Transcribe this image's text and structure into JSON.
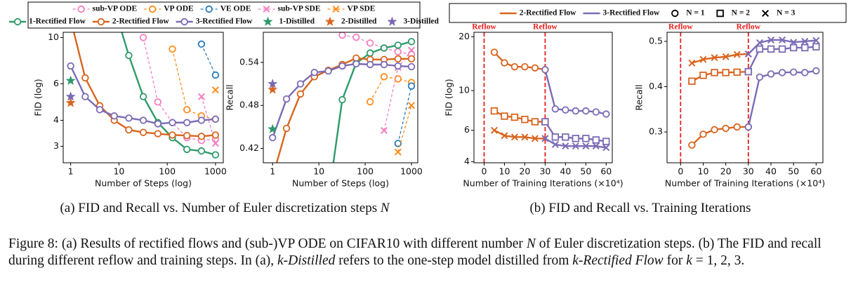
{
  "chart_data": [
    {
      "type": "line",
      "xlabel": "Number of Steps (log)",
      "ylabel": "FID (log)",
      "xlog": true,
      "ylog": true,
      "xlim": [
        0.7,
        1450
      ],
      "ylim": [
        2.5,
        10.6
      ],
      "xticks": [
        1,
        10,
        100,
        1000
      ],
      "yticks": [
        3,
        4,
        6,
        10
      ],
      "x": [
        1,
        2,
        4,
        8,
        16,
        32,
        64,
        128,
        256,
        512,
        1000
      ],
      "series": [
        {
          "name": "sub-VP ODE",
          "color": "#f47fc0",
          "marker": "circle",
          "linestyle": "dashed",
          "values": [
            null,
            null,
            null,
            null,
            null,
            10,
            4.9,
            3.9,
            3.3,
            3.2,
            3.25
          ]
        },
        {
          "name": "VP ODE",
          "color": "#ff8c1a",
          "marker": "circle",
          "linestyle": "dashed",
          "values": [
            null,
            null,
            null,
            null,
            null,
            null,
            null,
            8.8,
            4.5,
            4.2,
            4.05
          ]
        },
        {
          "name": "VE ODE",
          "color": "#2a7ab9",
          "marker": "circle",
          "linestyle": "dashed",
          "values": [
            null,
            null,
            null,
            null,
            null,
            null,
            null,
            null,
            null,
            9.3,
            6.6
          ]
        },
        {
          "name": "sub-VP SDE",
          "color": "#f47fc0",
          "marker": "x",
          "linestyle": "dashed",
          "values": [
            null,
            null,
            null,
            null,
            null,
            null,
            null,
            null,
            null,
            5.2,
            3.1
          ]
        },
        {
          "name": "VP SDE",
          "color": "#ff8c1a",
          "marker": "x",
          "linestyle": "dashed",
          "values": [
            null,
            null,
            null,
            null,
            null,
            null,
            null,
            null,
            null,
            null,
            5.6
          ]
        },
        {
          "name": "1-Rectified Flow",
          "color": "#2e9a6a",
          "marker": "circle",
          "linestyle": "solid",
          "values": [
            null,
            null,
            null,
            14,
            8.2,
            5.2,
            3.9,
            3.3,
            2.9,
            2.85,
            2.73
          ]
        },
        {
          "name": "2-Rectified Flow",
          "color": "#d9651f",
          "marker": "circle",
          "linestyle": "solid",
          "values": [
            12.2,
            6.4,
            4.7,
            4.0,
            3.6,
            3.5,
            3.45,
            3.4,
            3.38,
            3.35,
            3.4
          ]
        },
        {
          "name": "3-Rectified Flow",
          "color": "#7b6bb5",
          "marker": "circle",
          "linestyle": "solid",
          "values": [
            7.3,
            5.2,
            4.5,
            4.2,
            4.1,
            4.0,
            3.85,
            3.9,
            3.9,
            4.0,
            4.05
          ]
        },
        {
          "name": "1-Distilled",
          "color": "#2e9a6a",
          "marker": "star",
          "linestyle": "none",
          "values": [
            6.2,
            null,
            null,
            null,
            null,
            null,
            null,
            null,
            null,
            null,
            null
          ]
        },
        {
          "name": "2-Distilled",
          "color": "#d9651f",
          "marker": "star",
          "linestyle": "none",
          "values": [
            4.85,
            null,
            null,
            null,
            null,
            null,
            null,
            null,
            null,
            null,
            null
          ]
        },
        {
          "name": "3-Distilled",
          "color": "#7b6bb5",
          "marker": "star",
          "linestyle": "none",
          "values": [
            5.2,
            null,
            null,
            null,
            null,
            null,
            null,
            null,
            null,
            null,
            null
          ]
        }
      ]
    },
    {
      "type": "line",
      "xlabel": "Number of Steps (log)",
      "ylabel": "Recall",
      "xlog": true,
      "ylog": false,
      "xlim": [
        0.63,
        1370
      ],
      "ylim": [
        0.4,
        0.582
      ],
      "xticks": [
        1,
        10,
        100,
        1000
      ],
      "yticks": [
        0.42,
        0.48,
        0.54
      ],
      "x": [
        1,
        2,
        4,
        8,
        16,
        32,
        64,
        128,
        256,
        512,
        1000
      ],
      "series": [
        {
          "color": "#f47fc0",
          "marker": "circle",
          "linestyle": "dashed",
          "values": [
            null,
            null,
            null,
            null,
            null,
            0.578,
            0.575,
            0.567,
            0.56,
            0.555,
            0.551
          ]
        },
        {
          "color": "#ff8c1a",
          "marker": "circle",
          "linestyle": "dashed",
          "values": [
            null,
            null,
            null,
            null,
            null,
            null,
            null,
            0.485,
            0.52,
            0.517,
            0.512
          ]
        },
        {
          "color": "#2a7ab9",
          "marker": "circle",
          "linestyle": "dashed",
          "values": [
            null,
            null,
            null,
            null,
            null,
            null,
            null,
            null,
            null,
            0.427,
            0.507
          ]
        },
        {
          "color": "#f47fc0",
          "marker": "x",
          "linestyle": "dashed",
          "values": [
            null,
            null,
            null,
            null,
            null,
            null,
            null,
            null,
            0.445,
            0.533,
            0.557
          ]
        },
        {
          "color": "#ff8c1a",
          "marker": "x",
          "linestyle": "dashed",
          "values": [
            null,
            null,
            null,
            null,
            null,
            null,
            null,
            null,
            null,
            0.415,
            0.48
          ]
        },
        {
          "color": "#2e9a6a",
          "marker": "circle",
          "linestyle": "solid",
          "values": [
            null,
            null,
            null,
            null,
            0.35,
            0.488,
            0.539,
            0.553,
            0.56,
            0.564,
            0.569
          ]
        },
        {
          "color": "#d9651f",
          "marker": "circle",
          "linestyle": "solid",
          "values": [
            0.38,
            0.448,
            0.496,
            0.52,
            0.529,
            0.537,
            0.546,
            0.544,
            0.544,
            0.545,
            0.545
          ]
        },
        {
          "color": "#7b6bb5",
          "marker": "circle",
          "linestyle": "solid",
          "values": [
            0.435,
            0.489,
            0.51,
            0.526,
            0.528,
            0.535,
            0.538,
            0.537,
            0.537,
            0.535,
            0.534
          ]
        },
        {
          "color": "#2e9a6a",
          "marker": "star",
          "linestyle": "none",
          "values": [
            0.447,
            null,
            null,
            null,
            null,
            null,
            null,
            null,
            null,
            null,
            null
          ]
        },
        {
          "color": "#d9651f",
          "marker": "star",
          "linestyle": "none",
          "values": [
            0.502,
            null,
            null,
            null,
            null,
            null,
            null,
            null,
            null,
            null,
            null
          ]
        },
        {
          "color": "#7b6bb5",
          "marker": "star",
          "linestyle": "none",
          "values": [
            0.51,
            null,
            null,
            null,
            null,
            null,
            null,
            null,
            null,
            null,
            null
          ]
        }
      ]
    },
    {
      "type": "line",
      "xlabel": "Number of Training Iterations (×10⁴)",
      "ylabel": "FID (log)",
      "xlog": false,
      "ylog": true,
      "xlim": [
        -5,
        63
      ],
      "ylim": [
        3.95,
        21.2
      ],
      "xticks": [
        0,
        10,
        20,
        30,
        40,
        50,
        60
      ],
      "yticks": [
        4,
        6,
        10,
        20
      ],
      "vline_color": "#e82020",
      "vlines": [
        {
          "x": 0,
          "label": "Reflow"
        },
        {
          "x": 30,
          "label": "Reflow"
        }
      ],
      "legend": {
        "lines": [
          {
            "label": "2-Rectified Flow",
            "color": "#d9651f"
          },
          {
            "label": "3-Rectified Flow",
            "color": "#7b6bb5"
          }
        ],
        "markers": [
          {
            "label": "N = 1",
            "marker": "circle"
          },
          {
            "label": "N = 2",
            "marker": "square"
          },
          {
            "label": "N = 3",
            "marker": "x"
          }
        ]
      },
      "series": [
        {
          "color": "#d9651f",
          "marker": "circle",
          "linestyle": "solid",
          "x": [
            5,
            10,
            15,
            20,
            25,
            30
          ],
          "values": [
            16.4,
            14.3,
            13.6,
            13.6,
            13.4,
            13.1
          ]
        },
        {
          "color": "#d9651f",
          "marker": "square",
          "linestyle": "solid",
          "x": [
            5,
            10,
            15,
            20,
            25,
            30
          ],
          "values": [
            7.7,
            7.2,
            7.1,
            6.9,
            6.7,
            6.7
          ]
        },
        {
          "color": "#d9651f",
          "marker": "x",
          "linestyle": "solid",
          "x": [
            5,
            10,
            15,
            20,
            25,
            30
          ],
          "values": [
            6.0,
            5.6,
            5.5,
            5.5,
            5.4,
            5.4
          ]
        },
        {
          "color": "#7b6bb5",
          "marker": "circle",
          "linestyle": "solid",
          "x": [
            30,
            35,
            40,
            45,
            50,
            55,
            60
          ],
          "values": [
            13.1,
            7.9,
            7.8,
            7.7,
            7.7,
            7.6,
            7.4
          ]
        },
        {
          "color": "#7b6bb5",
          "marker": "square",
          "linestyle": "solid",
          "x": [
            30,
            35,
            40,
            45,
            50,
            55,
            60
          ],
          "values": [
            6.7,
            5.5,
            5.5,
            5.4,
            5.4,
            5.3,
            5.2
          ]
        },
        {
          "color": "#7b6bb5",
          "marker": "x",
          "linestyle": "solid",
          "x": [
            30,
            35,
            40,
            45,
            50,
            55,
            60
          ],
          "values": [
            5.4,
            5.0,
            4.9,
            4.9,
            4.9,
            4.9,
            4.8
          ]
        }
      ]
    },
    {
      "type": "line",
      "xlabel": "Number of Training Iterations (×10⁴)",
      "ylabel": "Recall",
      "xlog": false,
      "ylog": false,
      "xlim": [
        -6,
        63
      ],
      "ylim": [
        0.232,
        0.52
      ],
      "xticks": [
        0,
        10,
        20,
        30,
        40,
        50,
        60
      ],
      "yticks": [
        0.3,
        0.4,
        0.5
      ],
      "vline_color": "#e82020",
      "vlines": [
        {
          "x": 0,
          "label": "Reflow"
        },
        {
          "x": 30,
          "label": "Reflow"
        }
      ],
      "series": [
        {
          "color": "#d9651f",
          "marker": "circle",
          "linestyle": "solid",
          "x": [
            5,
            10,
            15,
            20,
            25,
            30
          ],
          "values": [
            0.271,
            0.295,
            0.305,
            0.308,
            0.311,
            0.311
          ]
        },
        {
          "color": "#d9651f",
          "marker": "square",
          "linestyle": "solid",
          "x": [
            5,
            10,
            15,
            20,
            25,
            30
          ],
          "values": [
            0.412,
            0.425,
            0.431,
            0.431,
            0.432,
            0.433
          ]
        },
        {
          "color": "#d9651f",
          "marker": "x",
          "linestyle": "solid",
          "x": [
            5,
            10,
            15,
            20,
            25,
            30
          ],
          "values": [
            0.452,
            0.46,
            0.464,
            0.466,
            0.471,
            0.472
          ]
        },
        {
          "color": "#7b6bb5",
          "marker": "circle",
          "linestyle": "solid",
          "x": [
            30,
            35,
            40,
            45,
            50,
            55,
            60
          ],
          "values": [
            0.311,
            0.421,
            0.428,
            0.431,
            0.432,
            0.431,
            0.435
          ]
        },
        {
          "color": "#7b6bb5",
          "marker": "square",
          "linestyle": "solid",
          "x": [
            30,
            35,
            40,
            45,
            50,
            55,
            60
          ],
          "values": [
            0.433,
            0.483,
            0.483,
            0.483,
            0.486,
            0.486,
            0.488
          ]
        },
        {
          "color": "#7b6bb5",
          "marker": "x",
          "linestyle": "solid",
          "x": [
            30,
            35,
            40,
            45,
            50,
            55,
            60
          ],
          "values": [
            0.472,
            0.497,
            0.503,
            0.503,
            0.498,
            0.5,
            0.502
          ]
        }
      ]
    }
  ],
  "subcaptions": [
    [
      {
        "text": "(a) FID and Recall vs. Number of Euler discretization steps "
      },
      {
        "text": "N",
        "italic": true
      }
    ],
    [
      {
        "text": "(b) FID and Recall vs. Training Iterations"
      }
    ]
  ],
  "figure_caption": [
    {
      "text": "Figure 8: (a) Results of rectified flows and (sub-)VP ODE on CIFAR10 with different number "
    },
    {
      "text": "N",
      "italic": true
    },
    {
      "text": " of Euler discretization steps. (b) The FID and recall during different reflow and training steps. In (a), "
    },
    {
      "text": "k-Distilled",
      "italic": true
    },
    {
      "text": " refers to the one-step model distilled from "
    },
    {
      "text": "k-Rectified Flow",
      "italic": true
    },
    {
      "text": " for "
    },
    {
      "text": "k",
      "italic": true
    },
    {
      "text": " = 1, 2, 3."
    }
  ]
}
